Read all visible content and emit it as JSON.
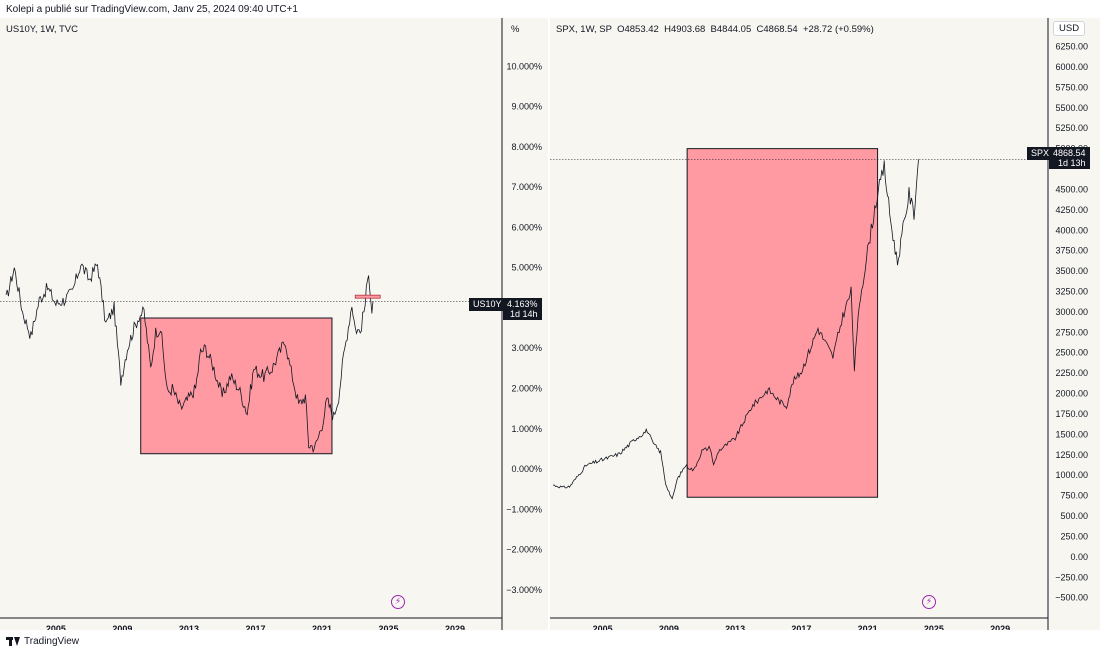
{
  "publication": "Kolepi a publié sur TradingView.com, Janv 25, 2024 09:40 UTC+1",
  "footer_brand": "TradingView",
  "colors": {
    "box_fill": "#ff9aa2",
    "line": "#131722",
    "bg": "#f7f6f1",
    "event_icon": "#9c27b0"
  },
  "icons": {
    "event": "lightning-icon",
    "brand": "tradingview-logo-icon"
  },
  "chart_data": [
    {
      "type": "line",
      "symbol": "US10Y",
      "legend": "US10Y, 1W, TVC",
      "unit_label": "%",
      "x_ticks": [
        "2005",
        "2009",
        "2013",
        "2017",
        "2021",
        "2025",
        "2029"
      ],
      "y_tick_labels": [
        "10.000%",
        "9.000%",
        "8.000%",
        "7.000%",
        "6.000%",
        "5.000%",
        "3.000%",
        "2.000%",
        "1.000%",
        "0.000%",
        "−1.000%",
        "−2.000%",
        "−3.000%"
      ],
      "y_ticks": [
        10,
        9,
        8,
        7,
        6,
        5,
        3,
        2,
        1,
        0,
        -1,
        -2,
        -3
      ],
      "last_price": "4.163%",
      "last_value": 4.163,
      "countdown": "1d 14h",
      "x_range": [
        2002.0,
        2030.2
      ],
      "y_range": [
        -3.6,
        11.2
      ],
      "series": [
        {
          "points": [
            [
              2002.0,
              4.2
            ],
            [
              2002.5,
              5.0
            ],
            [
              2003.0,
              3.9
            ],
            [
              2003.5,
              3.3
            ],
            [
              2004.0,
              4.2
            ],
            [
              2004.5,
              4.5
            ],
            [
              2005.0,
              4.1
            ],
            [
              2005.5,
              4.2
            ],
            [
              2006.0,
              4.4
            ],
            [
              2006.5,
              5.1
            ],
            [
              2007.0,
              4.7
            ],
            [
              2007.5,
              5.1
            ],
            [
              2008.0,
              3.6
            ],
            [
              2008.5,
              4.0
            ],
            [
              2008.9,
              2.2
            ],
            [
              2009.3,
              3.0
            ],
            [
              2009.7,
              3.5
            ],
            [
              2010.0,
              3.8
            ],
            [
              2010.3,
              3.9
            ],
            [
              2010.7,
              2.5
            ],
            [
              2011.0,
              3.4
            ],
            [
              2011.3,
              3.5
            ],
            [
              2011.7,
              1.9
            ],
            [
              2012.0,
              2.0
            ],
            [
              2012.5,
              1.5
            ],
            [
              2012.9,
              1.7
            ],
            [
              2013.4,
              2.0
            ],
            [
              2013.7,
              2.9
            ],
            [
              2014.0,
              3.0
            ],
            [
              2014.5,
              2.5
            ],
            [
              2015.0,
              1.8
            ],
            [
              2015.5,
              2.3
            ],
            [
              2016.0,
              2.0
            ],
            [
              2016.5,
              1.4
            ],
            [
              2016.9,
              2.5
            ],
            [
              2017.5,
              2.3
            ],
            [
              2018.0,
              2.5
            ],
            [
              2018.8,
              3.2
            ],
            [
              2019.0,
              2.7
            ],
            [
              2019.6,
              1.6
            ],
            [
              2020.0,
              1.8
            ],
            [
              2020.2,
              0.6
            ],
            [
              2020.6,
              0.55
            ],
            [
              2021.0,
              1.1
            ],
            [
              2021.3,
              1.7
            ],
            [
              2021.7,
              1.3
            ],
            [
              2022.0,
              1.8
            ],
            [
              2022.3,
              2.8
            ],
            [
              2022.8,
              4.1
            ],
            [
              2023.0,
              3.5
            ],
            [
              2023.3,
              3.4
            ],
            [
              2023.6,
              4.1
            ],
            [
              2023.8,
              4.95
            ],
            [
              2024.0,
              3.9
            ],
            [
              2024.07,
              4.16
            ]
          ]
        }
      ],
      "annotations": [
        {
          "type": "box",
          "x_range": [
            2010.1,
            2021.6
          ],
          "y_range": [
            0.38,
            3.75
          ]
        },
        {
          "type": "marker",
          "x_range": [
            2023.0,
            2024.5
          ],
          "y": 4.28
        }
      ]
    },
    {
      "type": "line",
      "symbol": "SPX",
      "legend": "SPX, 1W, SP  O4853.42  H4903.68  B4844.05  C4868.54  +28.72 (+0.59%)",
      "unit_label": "USD",
      "x_ticks": [
        "2005",
        "2009",
        "2013",
        "2017",
        "2021",
        "2025",
        "2029"
      ],
      "y_tick_labels": [
        "6250.00",
        "6000.00",
        "5750.00",
        "5500.00",
        "5250.00",
        "5000.00",
        "4500.00",
        "4250.00",
        "4000.00",
        "3750.00",
        "3500.00",
        "3250.00",
        "3000.00",
        "2750.00",
        "2500.00",
        "2250.00",
        "2000.00",
        "1750.00",
        "1500.00",
        "1250.00",
        "1000.00",
        "750.00",
        "500.00",
        "250.00",
        "0.00",
        "−250.00",
        "−500.00"
      ],
      "y_ticks": [
        6250,
        6000,
        5750,
        5500,
        5250,
        5000,
        4500,
        4250,
        4000,
        3750,
        3500,
        3250,
        3000,
        2750,
        2500,
        2250,
        2000,
        1750,
        1500,
        1250,
        1000,
        750,
        500,
        250,
        0,
        -250,
        -500
      ],
      "last_price": "4868.54",
      "last_value": 4868.54,
      "countdown": "1d 13h",
      "x_range": [
        2002.0,
        2030.2
      ],
      "y_range": [
        -700,
        6600
      ],
      "series": [
        {
          "points": [
            [
              2002.0,
              880
            ],
            [
              2002.6,
              850
            ],
            [
              2003.0,
              860
            ],
            [
              2003.5,
              990
            ],
            [
              2004.0,
              1120
            ],
            [
              2005.0,
              1190
            ],
            [
              2006.0,
              1260
            ],
            [
              2007.0,
              1450
            ],
            [
              2007.7,
              1550
            ],
            [
              2008.0,
              1400
            ],
            [
              2008.5,
              1280
            ],
            [
              2008.8,
              900
            ],
            [
              2009.2,
              700
            ],
            [
              2009.5,
              950
            ],
            [
              2010.0,
              1120
            ],
            [
              2010.5,
              1060
            ],
            [
              2011.0,
              1300
            ],
            [
              2011.5,
              1340
            ],
            [
              2011.7,
              1120
            ],
            [
              2012.0,
              1300
            ],
            [
              2013.0,
              1450
            ],
            [
              2014.0,
              1840
            ],
            [
              2015.0,
              2050
            ],
            [
              2015.7,
              1900
            ],
            [
              2016.1,
              1850
            ],
            [
              2016.5,
              2150
            ],
            [
              2017.0,
              2270
            ],
            [
              2018.0,
              2800
            ],
            [
              2018.9,
              2450
            ],
            [
              2019.5,
              2950
            ],
            [
              2020.0,
              3250
            ],
            [
              2020.2,
              2300
            ],
            [
              2020.5,
              3100
            ],
            [
              2021.0,
              3750
            ],
            [
              2021.5,
              4350
            ],
            [
              2022.0,
              4780
            ],
            [
              2022.4,
              4100
            ],
            [
              2022.8,
              3600
            ],
            [
              2023.0,
              3850
            ],
            [
              2023.5,
              4450
            ],
            [
              2023.8,
              4200
            ],
            [
              2024.07,
              4868
            ]
          ]
        }
      ],
      "annotations": [
        {
          "type": "box",
          "x_range": [
            2010.1,
            2021.6
          ],
          "y_range": [
            730,
            5000
          ]
        }
      ]
    }
  ]
}
